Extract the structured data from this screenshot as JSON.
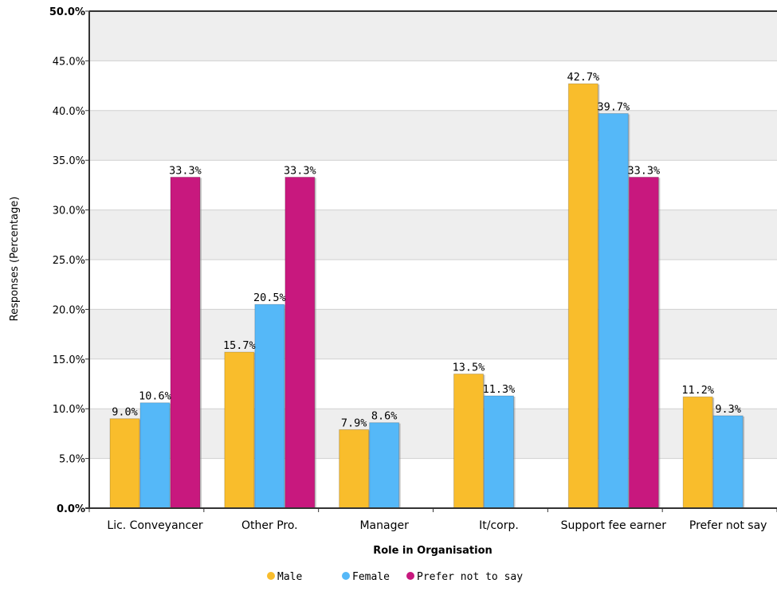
{
  "chart_data": {
    "type": "bar",
    "xlabel": "Role in Organisation",
    "ylabel": "Responses (Percentage)",
    "ylim": [
      0,
      50
    ],
    "y_ticks": [
      "0.0%",
      "5.0%",
      "10.0%",
      "15.0%",
      "20.0%",
      "25.0%",
      "30.0%",
      "35.0%",
      "40.0%",
      "45.0%",
      "50.0%"
    ],
    "grid": "horizontal, alternating light-grey bands",
    "legend_position": "bottom",
    "categories": [
      "Lic. Conveyancer",
      "Other Pro.",
      "Manager",
      "It/corp.",
      "Support fee earner",
      "Prefer not say"
    ],
    "series": [
      {
        "name": "Male",
        "color": "#f9bd2c",
        "values": [
          9.0,
          15.7,
          7.9,
          13.5,
          42.7,
          11.2
        ],
        "labels": [
          "9.0%",
          "15.7%",
          "7.9%",
          "13.5%",
          "42.7%",
          "11.2%"
        ]
      },
      {
        "name": "Female",
        "color": "#55b8f8",
        "values": [
          10.6,
          20.5,
          8.6,
          11.3,
          39.7,
          9.3
        ],
        "labels": [
          "10.6%",
          "20.5%",
          "8.6%",
          "11.3%",
          "39.7%",
          "9.3%"
        ]
      },
      {
        "name": "Prefer not to say",
        "color": "#c8187e",
        "values": [
          33.3,
          33.3,
          null,
          null,
          33.3,
          null
        ],
        "labels": [
          "33.3%",
          "33.3%",
          null,
          null,
          "33.3%",
          null
        ]
      }
    ]
  }
}
